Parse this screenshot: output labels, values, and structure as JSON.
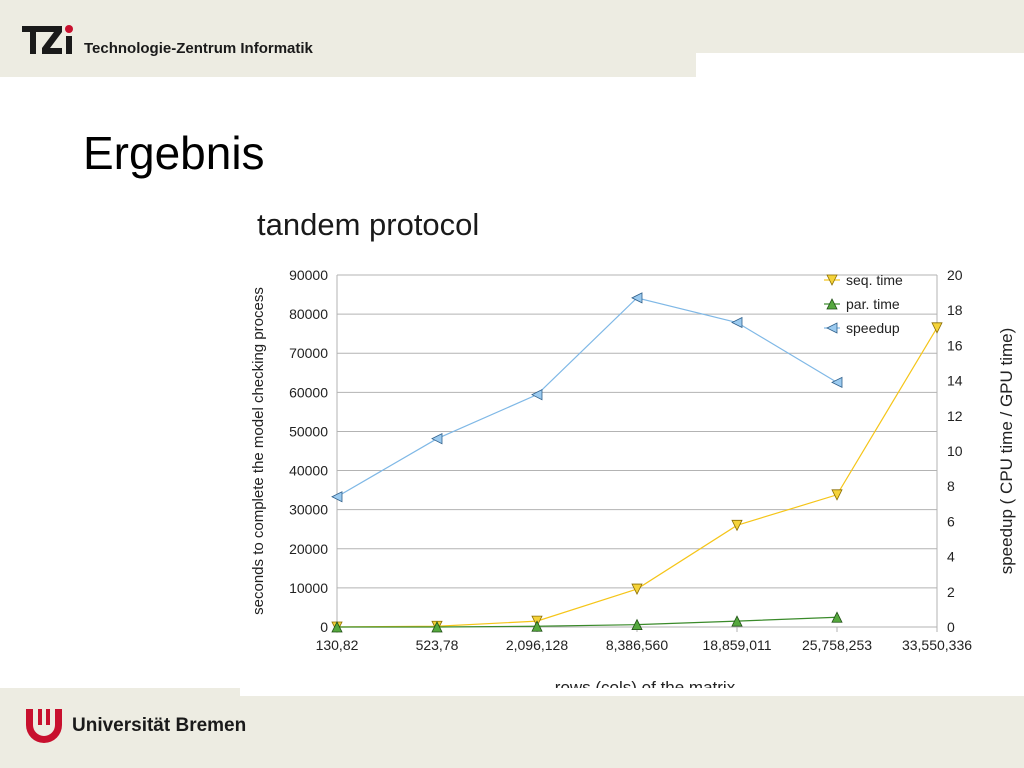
{
  "header": {
    "org_name": "Technologie-Zentrum Informatik",
    "logo_text": "TZi"
  },
  "slide": {
    "title": "Ergebnis"
  },
  "footer": {
    "university": "Universität Bremen"
  },
  "colors": {
    "band": "#edece2",
    "seq": "#f5c518",
    "par": "#3a8a2a",
    "speedup": "#7fb8e6",
    "logo_red": "#c8102e"
  },
  "chart_data": {
    "type": "line",
    "title": "tandem protocol",
    "xlabel": "rows (cols) of the matrix",
    "ylabel": "seconds to complete the model checking process",
    "y2label": "speedup ( CPU time / GPU time)",
    "categories": [
      "130,82",
      "523,78",
      "2,096,128",
      "8,386,560",
      "18,859,011",
      "25,758,253",
      "33,550,336"
    ],
    "ylim": [
      0,
      90000
    ],
    "y2lim": [
      0,
      20
    ],
    "yticks": [
      0,
      10000,
      20000,
      30000,
      40000,
      50000,
      60000,
      70000,
      80000,
      90000
    ],
    "y2ticks": [
      0,
      2,
      4,
      6,
      8,
      10,
      12,
      14,
      16,
      18,
      20
    ],
    "grid": true,
    "legend": "top-right",
    "series": [
      {
        "name": "seq. time",
        "axis": "left",
        "marker": "triangle-down",
        "values": [
          0,
          200,
          1500,
          9700,
          26000,
          33800,
          76500
        ]
      },
      {
        "name": "par. time",
        "axis": "left",
        "marker": "triangle-up",
        "values": [
          0,
          0,
          200,
          600,
          1500,
          2500,
          null
        ]
      },
      {
        "name": "speedup",
        "axis": "right",
        "marker": "triangle-left",
        "values": [
          7.4,
          10.7,
          13.2,
          18.7,
          17.3,
          13.9,
          null
        ]
      }
    ]
  }
}
